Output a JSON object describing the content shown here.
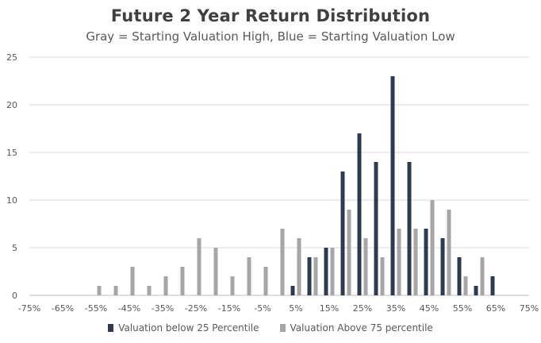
{
  "chart_data": {
    "type": "bar",
    "title": "Future 2 Year Return Distribution",
    "subtitle": "Gray = Starting Valuation High, Blue = Starting Valuation Low",
    "x_tick_labels": [
      "-75%",
      "-65%",
      "-55%",
      "-45%",
      "-35%",
      "-25%",
      "-15%",
      "-5%",
      "5%",
      "15%",
      "25%",
      "35%",
      "45%",
      "55%",
      "65%",
      "75%"
    ],
    "x_tick_values": [
      -75,
      -65,
      -55,
      -45,
      -35,
      -25,
      -15,
      -5,
      5,
      15,
      25,
      35,
      45,
      55,
      65,
      75
    ],
    "xlim": [
      -75,
      75
    ],
    "categories": [
      -70,
      -65,
      -60,
      -55,
      -50,
      -45,
      -40,
      -35,
      -30,
      -25,
      -20,
      -15,
      -10,
      -5,
      0,
      5,
      10,
      15,
      20,
      25,
      30,
      35,
      40,
      45,
      50,
      55,
      60,
      65,
      70
    ],
    "ylim": [
      0,
      25
    ],
    "y_ticks": [
      0,
      5,
      10,
      15,
      20,
      25
    ],
    "grid": true,
    "legend_position": "bottom",
    "series": [
      {
        "name": "Valuation below 25 Percentile",
        "color": "#2e3a52",
        "values": [
          0,
          0,
          0,
          0,
          0,
          0,
          0,
          0,
          0,
          0,
          0,
          0,
          0,
          0,
          0,
          1,
          4,
          5,
          13,
          17,
          14,
          23,
          14,
          7,
          6,
          4,
          1,
          2,
          0
        ]
      },
      {
        "name": "Valuation Above 75 percentile",
        "color": "#a6a6a6",
        "values": [
          0,
          0,
          0,
          1,
          1,
          3,
          1,
          2,
          3,
          6,
          5,
          2,
          4,
          3,
          7,
          6,
          4,
          5,
          9,
          6,
          4,
          7,
          7,
          10,
          9,
          2,
          4,
          0,
          0
        ]
      }
    ]
  }
}
